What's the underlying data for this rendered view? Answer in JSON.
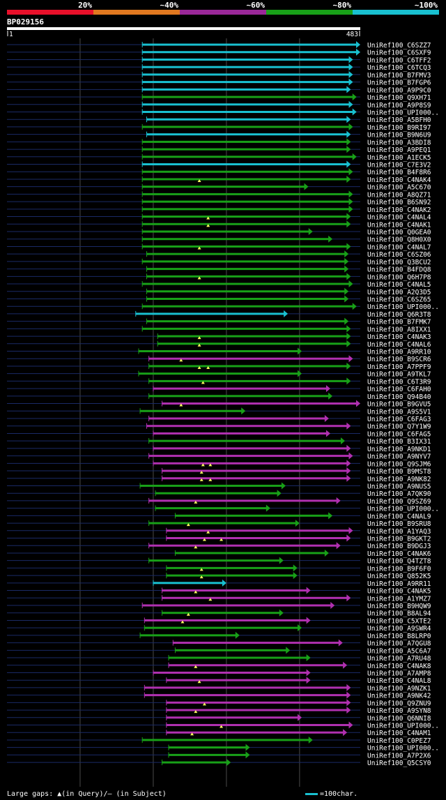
{
  "chart_data": {
    "type": "alignment-overview",
    "query_id": "BP029156",
    "query_length": 483,
    "ruler_start": "1",
    "ruler_end": "483",
    "identity_scale": [
      {
        "label": "20%",
        "color": "#e8102a"
      },
      {
        "label": "~40%",
        "color": "#e07820"
      },
      {
        "label": "~60%",
        "color": "#9a2898"
      },
      {
        "label": "~80%",
        "color": "#18a018"
      },
      {
        "label": "~100%",
        "color": "#19c0d0"
      }
    ],
    "legend_text": "Large gaps: ▲(in Query)/– (in Subject)",
    "scale_text": "=100char.",
    "hits": [
      {
        "name": "UniRef100_C6SZZ7",
        "start": 185,
        "end": 483,
        "color": "cyan",
        "gaps": []
      },
      {
        "name": "UniRef100_C6SXF9",
        "start": 185,
        "end": 483,
        "color": "cyan",
        "gaps": []
      },
      {
        "name": "UniRef100_C6TFF2",
        "start": 185,
        "end": 473,
        "color": "cyan",
        "gaps": []
      },
      {
        "name": "UniRef100_C6TCQ3",
        "start": 185,
        "end": 473,
        "color": "cyan",
        "gaps": []
      },
      {
        "name": "UniRef100_B7FMV3",
        "start": 185,
        "end": 473,
        "color": "cyan",
        "gaps": []
      },
      {
        "name": "UniRef100_B7FGP6",
        "start": 185,
        "end": 473,
        "color": "cyan",
        "gaps": []
      },
      {
        "name": "UniRef100_A9P9C0",
        "start": 185,
        "end": 470,
        "color": "cyan",
        "gaps": []
      },
      {
        "name": "UniRef100_Q9XH71",
        "start": 185,
        "end": 478,
        "color": "green",
        "gaps": []
      },
      {
        "name": "UniRef100_A9P8S9",
        "start": 185,
        "end": 473,
        "color": "cyan",
        "gaps": []
      },
      {
        "name": "UniRef100_UPI000..",
        "start": 185,
        "end": 478,
        "color": "cyan",
        "gaps": []
      },
      {
        "name": "UniRef100_A5BFH0",
        "start": 191,
        "end": 470,
        "color": "cyan",
        "gaps": []
      },
      {
        "name": "UniRef100_B9RI97",
        "start": 185,
        "end": 473,
        "color": "green",
        "gaps": []
      },
      {
        "name": "UniRef100_B9N6U9",
        "start": 191,
        "end": 470,
        "color": "cyan",
        "gaps": []
      },
      {
        "name": "UniRef100_A3BDI8",
        "start": 185,
        "end": 470,
        "color": "green",
        "gaps": []
      },
      {
        "name": "UniRef100_A9PEQ1",
        "start": 185,
        "end": 470,
        "color": "green",
        "gaps": []
      },
      {
        "name": "UniRef100_A1ECK5",
        "start": 185,
        "end": 478,
        "color": "green",
        "gaps": []
      },
      {
        "name": "UniRef100_C7E3V2",
        "start": 185,
        "end": 470,
        "color": "cyan",
        "gaps": []
      },
      {
        "name": "UniRef100_B4F8R6",
        "start": 185,
        "end": 473,
        "color": "green",
        "gaps": []
      },
      {
        "name": "UniRef100_C4NAK4",
        "start": 185,
        "end": 470,
        "color": "green",
        "gaps": [
          263
        ]
      },
      {
        "name": "UniRef100_A5C670",
        "start": 185,
        "end": 412,
        "color": "green",
        "gaps": []
      },
      {
        "name": "UniRef100_A8QZ71",
        "start": 185,
        "end": 473,
        "color": "green",
        "gaps": []
      },
      {
        "name": "UniRef100_B6SN92",
        "start": 185,
        "end": 473,
        "color": "green",
        "gaps": []
      },
      {
        "name": "UniRef100_C4NAK2",
        "start": 185,
        "end": 473,
        "color": "green",
        "gaps": []
      },
      {
        "name": "UniRef100_C4NAL4",
        "start": 185,
        "end": 470,
        "color": "green",
        "gaps": [
          275
        ]
      },
      {
        "name": "UniRef100_C4NAK1",
        "start": 185,
        "end": 470,
        "color": "green",
        "gaps": [
          275
        ]
      },
      {
        "name": "UniRef100_Q0GEA0",
        "start": 185,
        "end": 418,
        "color": "green",
        "gaps": []
      },
      {
        "name": "UniRef100_Q8H0X0",
        "start": 185,
        "end": 445,
        "color": "green",
        "gaps": []
      },
      {
        "name": "UniRef100_C4NAL7",
        "start": 185,
        "end": 470,
        "color": "green",
        "gaps": [
          263
        ]
      },
      {
        "name": "UniRef100_C6SZ06",
        "start": 191,
        "end": 467,
        "color": "green",
        "gaps": []
      },
      {
        "name": "UniRef100_Q3BCU2",
        "start": 185,
        "end": 467,
        "color": "green",
        "gaps": []
      },
      {
        "name": "UniRef100_B4FDQ8",
        "start": 191,
        "end": 467,
        "color": "green",
        "gaps": []
      },
      {
        "name": "UniRef100_Q6H7P8",
        "start": 191,
        "end": 470,
        "color": "green",
        "gaps": [
          263
        ]
      },
      {
        "name": "UniRef100_C4NAL5",
        "start": 185,
        "end": 473,
        "color": "green",
        "gaps": []
      },
      {
        "name": "UniRef100_A2Q3D5",
        "start": 191,
        "end": 467,
        "color": "green",
        "gaps": []
      },
      {
        "name": "UniRef100_C6SZ65",
        "start": 191,
        "end": 467,
        "color": "green",
        "gaps": []
      },
      {
        "name": "UniRef100_UPI000..",
        "start": 185,
        "end": 478,
        "color": "green",
        "gaps": []
      },
      {
        "name": "UniRef100_Q6R3T8",
        "start": 176,
        "end": 384,
        "color": "cyan",
        "gaps": []
      },
      {
        "name": "UniRef100_B7FMK7",
        "start": 191,
        "end": 467,
        "color": "green",
        "gaps": []
      },
      {
        "name": "UniRef100_A8IXX1",
        "start": 185,
        "end": 470,
        "color": "green",
        "gaps": []
      },
      {
        "name": "UniRef100_C4NAK3",
        "start": 206,
        "end": 470,
        "color": "green",
        "gaps": [
          263
        ]
      },
      {
        "name": "UniRef100_C4NAL6",
        "start": 206,
        "end": 470,
        "color": "green",
        "gaps": [
          263
        ]
      },
      {
        "name": "UniRef100_A9RR10",
        "start": 180,
        "end": 403,
        "color": "green",
        "gaps": []
      },
      {
        "name": "UniRef100_B9SCR6",
        "start": 194,
        "end": 473,
        "color": "purple",
        "gaps": [
          238
        ]
      },
      {
        "name": "UniRef100_A7PPF9",
        "start": 194,
        "end": 470,
        "color": "green",
        "gaps": [
          263,
          275
        ]
      },
      {
        "name": "UniRef100_A9TKL7",
        "start": 180,
        "end": 403,
        "color": "green",
        "gaps": []
      },
      {
        "name": "UniRef100_C6T3R9",
        "start": 194,
        "end": 470,
        "color": "green",
        "gaps": [
          268
        ]
      },
      {
        "name": "UniRef100_C6FAH0",
        "start": 200,
        "end": 442,
        "color": "purple",
        "gaps": []
      },
      {
        "name": "UniRef100_Q94B40",
        "start": 194,
        "end": 445,
        "color": "green",
        "gaps": []
      },
      {
        "name": "UniRef100_B9GVU5",
        "start": 212,
        "end": 483,
        "color": "purple",
        "gaps": [
          238
        ]
      },
      {
        "name": "UniRef100_A9S5V1",
        "start": 182,
        "end": 326,
        "color": "green",
        "gaps": []
      },
      {
        "name": "UniRef100_C6FAG3",
        "start": 194,
        "end": 440,
        "color": "purple",
        "gaps": []
      },
      {
        "name": "UniRef100_Q7Y1W9",
        "start": 191,
        "end": 470,
        "color": "purple",
        "gaps": []
      },
      {
        "name": "UniRef100_C6FAG5",
        "start": 200,
        "end": 442,
        "color": "purple",
        "gaps": []
      },
      {
        "name": "UniRef100_B3IX31",
        "start": 194,
        "end": 462,
        "color": "green",
        "gaps": []
      },
      {
        "name": "UniRef100_A9NKD1",
        "start": 200,
        "end": 470,
        "color": "purple",
        "gaps": []
      },
      {
        "name": "UniRef100_A9NYV7",
        "start": 194,
        "end": 473,
        "color": "purple",
        "gaps": []
      },
      {
        "name": "UniRef100_Q9SJM6",
        "start": 200,
        "end": 470,
        "color": "purple",
        "gaps": [
          268,
          278
        ]
      },
      {
        "name": "UniRef100_B9MST8",
        "start": 212,
        "end": 470,
        "color": "purple",
        "gaps": [
          266
        ]
      },
      {
        "name": "UniRef100_A9NK82",
        "start": 212,
        "end": 470,
        "color": "purple",
        "gaps": [
          266,
          278
        ]
      },
      {
        "name": "UniRef100_A9NUS5",
        "start": 182,
        "end": 381,
        "color": "green",
        "gaps": []
      },
      {
        "name": "UniRef100_A7QK90",
        "start": 203,
        "end": 375,
        "color": "green",
        "gaps": []
      },
      {
        "name": "UniRef100_Q9SZ69",
        "start": 194,
        "end": 456,
        "color": "purple",
        "gaps": [
          258
        ]
      },
      {
        "name": "UniRef100_UPI000..",
        "start": 203,
        "end": 360,
        "color": "green",
        "gaps": []
      },
      {
        "name": "UniRef100_C4NAL9",
        "start": 230,
        "end": 445,
        "color": "green",
        "gaps": []
      },
      {
        "name": "UniRef100_B9SRU8",
        "start": 194,
        "end": 400,
        "color": "green",
        "gaps": [
          248
        ]
      },
      {
        "name": "UniRef100_A1YAQ3",
        "start": 218,
        "end": 473,
        "color": "purple",
        "gaps": [
          275
        ]
      },
      {
        "name": "UniRef100_B9GKT2",
        "start": 218,
        "end": 470,
        "color": "purple",
        "gaps": [
          270,
          293
        ]
      },
      {
        "name": "UniRef100_B9DGJ3",
        "start": 194,
        "end": 456,
        "color": "purple",
        "gaps": [
          258
        ]
      },
      {
        "name": "UniRef100_C4NAK6",
        "start": 230,
        "end": 440,
        "color": "green",
        "gaps": []
      },
      {
        "name": "UniRef100_Q4TZT8",
        "start": 194,
        "end": 378,
        "color": "green",
        "gaps": []
      },
      {
        "name": "UniRef100_B9F6F0",
        "start": 218,
        "end": 397,
        "color": "green",
        "gaps": [
          266
        ]
      },
      {
        "name": "UniRef100_Q852K5",
        "start": 218,
        "end": 397,
        "color": "green",
        "gaps": [
          266
        ]
      },
      {
        "name": "UniRef100_A9RR11",
        "start": 200,
        "end": 300,
        "color": "cyan",
        "gaps": []
      },
      {
        "name": "UniRef100_C4NAK5",
        "start": 212,
        "end": 415,
        "color": "purple",
        "gaps": [
          258
        ]
      },
      {
        "name": "UniRef100_A1YMZ7",
        "start": 212,
        "end": 470,
        "color": "purple",
        "gaps": [
          278
        ]
      },
      {
        "name": "UniRef100_B9HQW9",
        "start": 185,
        "end": 448,
        "color": "purple",
        "gaps": []
      },
      {
        "name": "UniRef100_B8AL94",
        "start": 212,
        "end": 378,
        "color": "green",
        "gaps": [
          248
        ]
      },
      {
        "name": "UniRef100_C5XTE2",
        "start": 188,
        "end": 415,
        "color": "purple",
        "gaps": [
          240
        ]
      },
      {
        "name": "UniRef100_A9SWR4",
        "start": 188,
        "end": 403,
        "color": "green",
        "gaps": []
      },
      {
        "name": "UniRef100_B8LRP0",
        "start": 182,
        "end": 318,
        "color": "green",
        "gaps": []
      },
      {
        "name": "UniRef100_A7QGU8",
        "start": 227,
        "end": 459,
        "color": "purple",
        "gaps": []
      },
      {
        "name": "UniRef100_A5C6A7",
        "start": 230,
        "end": 387,
        "color": "green",
        "gaps": []
      },
      {
        "name": "UniRef100_A7RU48",
        "start": 221,
        "end": 415,
        "color": "green",
        "gaps": []
      },
      {
        "name": "UniRef100_C4NAK8",
        "start": 221,
        "end": 465,
        "color": "purple",
        "gaps": [
          258
        ]
      },
      {
        "name": "UniRef100_A7AMP8",
        "start": 200,
        "end": 415,
        "color": "purple",
        "gaps": []
      },
      {
        "name": "UniRef100_C4NAL8",
        "start": 218,
        "end": 415,
        "color": "purple",
        "gaps": [
          263
        ]
      },
      {
        "name": "UniRef100_A9NZK1",
        "start": 188,
        "end": 470,
        "color": "purple",
        "gaps": []
      },
      {
        "name": "UniRef100_A9NK42",
        "start": 188,
        "end": 470,
        "color": "purple",
        "gaps": []
      },
      {
        "name": "UniRef100_Q9ZNU9",
        "start": 218,
        "end": 470,
        "color": "purple",
        "gaps": [
          270
        ]
      },
      {
        "name": "UniRef100_A9SYN8",
        "start": 218,
        "end": 470,
        "color": "purple",
        "gaps": [
          258
        ]
      },
      {
        "name": "UniRef100_Q6NNI8",
        "start": 218,
        "end": 403,
        "color": "purple",
        "gaps": []
      },
      {
        "name": "UniRef100_UPI000..",
        "start": 218,
        "end": 473,
        "color": "purple",
        "gaps": [
          293
        ]
      },
      {
        "name": "UniRef100_C4NAM1",
        "start": 218,
        "end": 465,
        "color": "purple",
        "gaps": [
          253
        ]
      },
      {
        "name": "UniRef100_C0PEZ7",
        "start": 185,
        "end": 418,
        "color": "green",
        "gaps": []
      },
      {
        "name": "UniRef100_UPI000..",
        "start": 221,
        "end": 332,
        "color": "green",
        "gaps": []
      },
      {
        "name": "UniRef100_A7P2X6",
        "start": 221,
        "end": 332,
        "color": "green",
        "gaps": []
      },
      {
        "name": "UniRef100_Q5CSY0",
        "start": 212,
        "end": 306,
        "color": "green",
        "gaps": []
      }
    ]
  }
}
